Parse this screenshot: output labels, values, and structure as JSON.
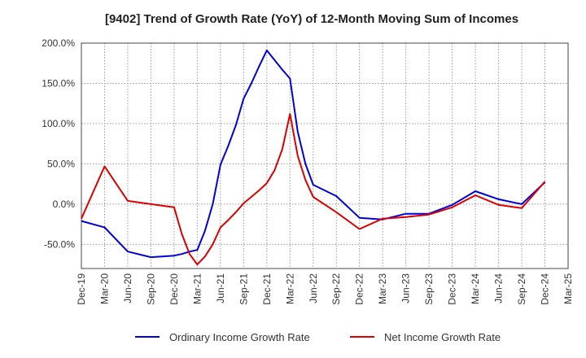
{
  "chart_data": {
    "type": "line",
    "title": "[9402]  Trend of Growth Rate (YoY) of 12-Month Moving Sum of Incomes",
    "xlabel": "",
    "ylabel": "",
    "ylim": [
      -80,
      200
    ],
    "y_ticks": [
      -50,
      0,
      50,
      100,
      150,
      200
    ],
    "y_tick_labels": [
      "-50.0%",
      "0.0%",
      "50.0%",
      "100.0%",
      "150.0%",
      "200.0%"
    ],
    "x_tick_labels": [
      "Dec-19",
      "Mar-20",
      "Jun-20",
      "Sep-20",
      "Dec-20",
      "Mar-21",
      "Jun-21",
      "Sep-21",
      "Dec-21",
      "Mar-22",
      "Jun-22",
      "Sep-22",
      "Dec-22",
      "Mar-23",
      "Jun-23",
      "Sep-23",
      "Dec-23",
      "Mar-24",
      "Jun-24",
      "Sep-24",
      "Dec-24",
      "Mar-25"
    ],
    "grid": true,
    "legend_position": "bottom",
    "series": [
      {
        "name": "Ordinary Income Growth Rate",
        "color": "#0000dd",
        "points": [
          [
            "Dec-19",
            -21
          ],
          [
            "Mar-20",
            -29
          ],
          [
            "Jun-20",
            -59
          ],
          [
            "Sep-20",
            -66
          ],
          [
            "Dec-20",
            -64
          ],
          [
            "Jan-21",
            -62
          ],
          [
            "Feb-21",
            -59
          ],
          [
            "Mar-21",
            -57
          ],
          [
            "Apr-21",
            -33
          ],
          [
            "May-21",
            0
          ],
          [
            "Jun-21",
            49
          ],
          [
            "Jul-21",
            72
          ],
          [
            "Aug-21",
            98
          ],
          [
            "Sep-21",
            131
          ],
          [
            "Oct-21",
            150
          ],
          [
            "Nov-21",
            171
          ],
          [
            "Dec-21",
            191
          ],
          [
            "Jan-22",
            179
          ],
          [
            "Feb-22",
            167
          ],
          [
            "Mar-22",
            156
          ],
          [
            "Apr-22",
            90
          ],
          [
            "May-22",
            50
          ],
          [
            "Jun-22",
            24
          ],
          [
            "Sep-22",
            10
          ],
          [
            "Dec-22",
            -17
          ],
          [
            "Mar-23",
            -19
          ],
          [
            "Jun-23",
            -12
          ],
          [
            "Sep-23",
            -12
          ],
          [
            "Dec-23",
            -1
          ],
          [
            "Mar-24",
            16
          ],
          [
            "Jun-24",
            6
          ],
          [
            "Sep-24",
            0
          ],
          [
            "Dec-24",
            27
          ]
        ]
      },
      {
        "name": "Net Income Growth Rate",
        "color": "#dd0000",
        "points": [
          [
            "Dec-19",
            -18
          ],
          [
            "Mar-20",
            47
          ],
          [
            "Jun-20",
            4
          ],
          [
            "Sep-20",
            0
          ],
          [
            "Dec-20",
            -4
          ],
          [
            "Jan-21",
            -37
          ],
          [
            "Feb-21",
            -62
          ],
          [
            "Mar-21",
            -75
          ],
          [
            "Apr-21",
            -65
          ],
          [
            "May-21",
            -50
          ],
          [
            "Jun-21",
            -29
          ],
          [
            "Jul-21",
            -20
          ],
          [
            "Aug-21",
            -10
          ],
          [
            "Sep-21",
            1
          ],
          [
            "Oct-21",
            9
          ],
          [
            "Nov-21",
            17
          ],
          [
            "Dec-21",
            26
          ],
          [
            "Jan-22",
            42
          ],
          [
            "Feb-22",
            68
          ],
          [
            "Mar-22",
            112
          ],
          [
            "Apr-22",
            60
          ],
          [
            "May-22",
            30
          ],
          [
            "Jun-22",
            9
          ],
          [
            "Sep-22",
            -10
          ],
          [
            "Dec-22",
            -31
          ],
          [
            "Mar-23",
            -18
          ],
          [
            "Jun-23",
            -16
          ],
          [
            "Sep-23",
            -13
          ],
          [
            "Dec-23",
            -4
          ],
          [
            "Mar-24",
            11
          ],
          [
            "Jun-24",
            -1
          ],
          [
            "Sep-24",
            -5
          ],
          [
            "Dec-24",
            28
          ]
        ]
      }
    ]
  }
}
